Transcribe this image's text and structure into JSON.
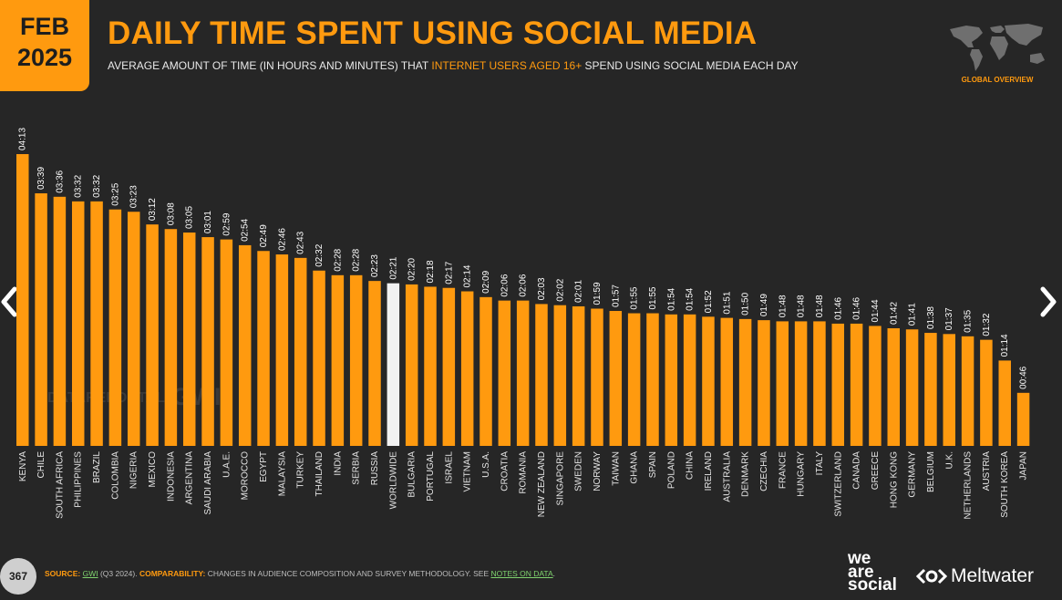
{
  "header": {
    "month": "FEB",
    "year": "2025",
    "title": "DAILY TIME SPENT USING SOCIAL MEDIA",
    "subtitle_pre": "AVERAGE AMOUNT OF TIME (IN HOURS AND MINUTES) THAT ",
    "subtitle_highlight": "INTERNET USERS AGED 16+",
    "subtitle_post": " SPEND USING SOCIAL MEDIA EACH DAY",
    "badge": "GLOBAL OVERVIEW"
  },
  "watermark": {
    "datareportal": "DATAREPORTAL",
    "gwi": "GWI."
  },
  "footer": {
    "page_number": "367",
    "source_label": "SOURCE:",
    "source_gwi": "GWI",
    "source_period": " (Q3 2024). ",
    "comparability_label": "COMPARABILITY:",
    "comparability_text": " CHANGES IN AUDIENCE COMPOSITION AND SURVEY METHODOLOGY. SEE ",
    "notes_link": "NOTES ON DATA",
    "notes_end": ".",
    "was_line1": "we",
    "was_line2": "are",
    "was_line3": "social",
    "meltwater": "Meltwater"
  },
  "colors": {
    "bar": "#ff9a0f",
    "highlight_bar": "#f2f2f2",
    "background": "#262626",
    "accent": "#ff9a0f"
  },
  "icons": {
    "prev": "chevron-left-icon",
    "next": "chevron-right-icon",
    "map": "world-map-icon"
  },
  "chart_data": {
    "type": "bar",
    "highlight": "WORLDWIDE",
    "categories": [
      "KENYA",
      "CHILE",
      "SOUTH AFRICA",
      "PHILIPPINES",
      "BRAZIL",
      "COLOMBIA",
      "NIGERIA",
      "MEXICO",
      "INDONESIA",
      "ARGENTINA",
      "SAUDI ARABIA",
      "U.A.E.",
      "MOROCCO",
      "EGYPT",
      "MALAYSIA",
      "TURKEY",
      "THAILAND",
      "INDIA",
      "SERBIA",
      "RUSSIA",
      "WORLDWIDE",
      "BULGARIA",
      "PORTUGAL",
      "ISRAEL",
      "VIETNAM",
      "U.S.A.",
      "CROATIA",
      "ROMANIA",
      "NEW ZEALAND",
      "SINGAPORE",
      "SWEDEN",
      "NORWAY",
      "TAIWAN",
      "GHANA",
      "SPAIN",
      "POLAND",
      "CHINA",
      "IRELAND",
      "AUSTRALIA",
      "DENMARK",
      "CZECHIA",
      "FRANCE",
      "HUNGARY",
      "ITALY",
      "SWITZERLAND",
      "CANADA",
      "GREECE",
      "HONG KONG",
      "GERMANY",
      "BELGIUM",
      "U.K.",
      "NETHERLANDS",
      "AUSTRIA",
      "SOUTH KOREA",
      "JAPAN"
    ],
    "labels": [
      "04:13",
      "03:39",
      "03:36",
      "03:32",
      "03:32",
      "03:25",
      "03:23",
      "03:12",
      "03:08",
      "03:05",
      "03:01",
      "02:59",
      "02:54",
      "02:49",
      "02:46",
      "02:43",
      "02:32",
      "02:28",
      "02:28",
      "02:23",
      "02:21",
      "02:20",
      "02:18",
      "02:17",
      "02:14",
      "02:09",
      "02:06",
      "02:06",
      "02:03",
      "02:02",
      "02:01",
      "01:59",
      "01:57",
      "01:55",
      "01:55",
      "01:54",
      "01:54",
      "01:52",
      "01:51",
      "01:50",
      "01:49",
      "01:48",
      "01:48",
      "01:48",
      "01:46",
      "01:46",
      "01:44",
      "01:42",
      "01:41",
      "01:38",
      "01:37",
      "01:35",
      "01:32",
      "01:14",
      "00:46"
    ],
    "values": [
      253,
      219,
      216,
      212,
      212,
      205,
      203,
      192,
      188,
      185,
      181,
      179,
      174,
      169,
      166,
      163,
      152,
      148,
      148,
      143,
      141,
      140,
      138,
      137,
      134,
      129,
      126,
      126,
      123,
      122,
      121,
      119,
      117,
      115,
      115,
      114,
      114,
      112,
      111,
      110,
      109,
      108,
      108,
      108,
      106,
      106,
      104,
      102,
      101,
      98,
      97,
      95,
      92,
      74,
      46
    ],
    "unit": "minutes"
  }
}
